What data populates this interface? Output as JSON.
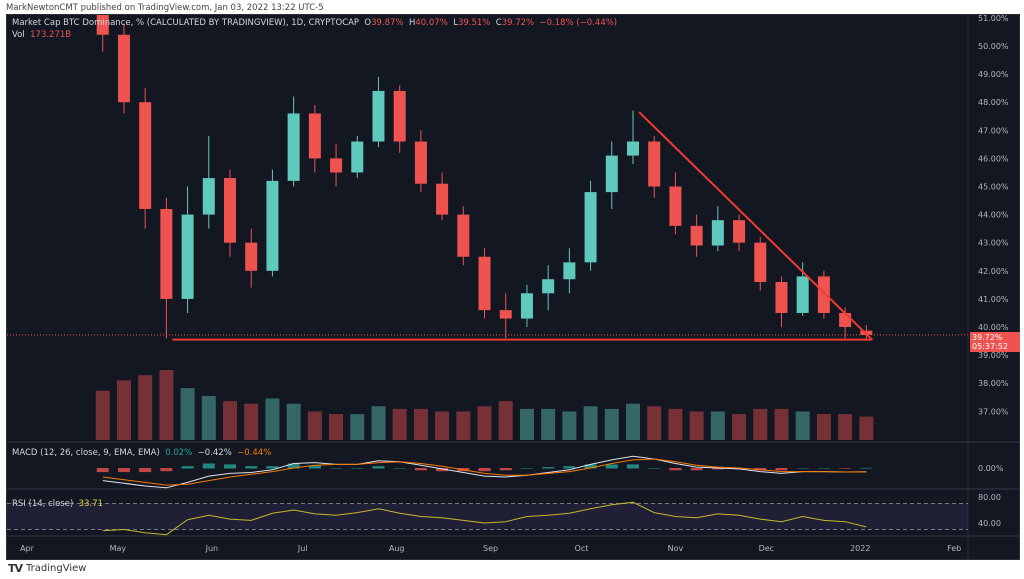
{
  "header": {
    "published": "MarkNewtonCMT published on TradingView.com, Jan 03, 2022 13:22 UTC-5"
  },
  "legend": {
    "symbol": "Market Cap BTC Dominance, % (CALCULATED BY TRADINGVIEW), 1D, CRYPTOCAP",
    "o_label": "O",
    "o": "39.87%",
    "h_label": "H",
    "h": "40.07%",
    "l_label": "L",
    "l": "39.51%",
    "c_label": "C",
    "c": "39.72%",
    "change": "−0.18% (−0.44%)",
    "vol_label": "Vol",
    "vol": "173.271B"
  },
  "macd": {
    "label": "MACD (12, 26, close, 9, EMA, EMA)",
    "hist": "0.02%",
    "macd": "−0.42%",
    "signal": "−0.44%",
    "tick": "0.00%"
  },
  "rsi": {
    "label": "RSI (14, close)",
    "value": "33.71",
    "ticks": [
      "80.00",
      "40.00"
    ]
  },
  "price_tag": {
    "value": "39.72%",
    "countdown": "05:37:52"
  },
  "footer": {
    "logo": "TV",
    "brand": "TradingView"
  },
  "colors": {
    "up": "#5fc9bd",
    "down": "#ef5350",
    "trendline": "#f23b2e",
    "macd": "#e0e3eb",
    "signal": "#f57c00",
    "rsi": "#c9b52a"
  },
  "chart_data": {
    "type": "candlestick",
    "interval": "1W approx (original 1D)",
    "y_ticks": [
      "51.00%",
      "50.00%",
      "49.00%",
      "48.00%",
      "47.00%",
      "46.00%",
      "45.00%",
      "44.00%",
      "43.00%",
      "42.00%",
      "41.00%",
      "40.00%",
      "39.00%",
      "38.00%",
      "37.00%"
    ],
    "ylim": [
      36.5,
      51.2
    ],
    "x_ticks": [
      "Apr",
      "May",
      "Jun",
      "Jul",
      "Aug",
      "Sep",
      "Oct",
      "Nov",
      "Dec",
      "2022",
      "Feb"
    ],
    "x_tick_dates": [
      "2021-04-01",
      "2021-05-01",
      "2021-06-01",
      "2021-07-01",
      "2021-08-01",
      "2021-09-01",
      "2021-10-01",
      "2021-11-01",
      "2021-12-01",
      "2022-01-01",
      "2022-02-01"
    ],
    "candles": [
      {
        "d": "2021-04-26",
        "o": 51.2,
        "h": 51.5,
        "l": 49.8,
        "c": 50.4,
        "v": 190
      },
      {
        "d": "2021-05-03",
        "o": 50.4,
        "h": 50.8,
        "l": 47.6,
        "c": 48.0,
        "v": 230
      },
      {
        "d": "2021-05-10",
        "o": 48.0,
        "h": 48.5,
        "l": 43.5,
        "c": 44.2,
        "v": 250
      },
      {
        "d": "2021-05-17",
        "o": 44.2,
        "h": 44.6,
        "l": 39.6,
        "c": 41.0,
        "v": 270
      },
      {
        "d": "2021-05-24",
        "o": 41.0,
        "h": 45.0,
        "l": 40.5,
        "c": 44.0,
        "v": 200
      },
      {
        "d": "2021-05-31",
        "o": 44.0,
        "h": 46.8,
        "l": 43.5,
        "c": 45.3,
        "v": 170
      },
      {
        "d": "2021-06-07",
        "o": 45.3,
        "h": 45.6,
        "l": 42.5,
        "c": 43.0,
        "v": 150
      },
      {
        "d": "2021-06-14",
        "o": 43.0,
        "h": 43.5,
        "l": 41.4,
        "c": 42.0,
        "v": 140
      },
      {
        "d": "2021-06-21",
        "o": 42.0,
        "h": 45.6,
        "l": 41.8,
        "c": 45.2,
        "v": 160
      },
      {
        "d": "2021-06-28",
        "o": 45.2,
        "h": 48.2,
        "l": 45.0,
        "c": 47.6,
        "v": 140
      },
      {
        "d": "2021-07-05",
        "o": 47.6,
        "h": 47.9,
        "l": 45.5,
        "c": 46.0,
        "v": 110
      },
      {
        "d": "2021-07-12",
        "o": 46.0,
        "h": 46.5,
        "l": 45.0,
        "c": 45.5,
        "v": 100
      },
      {
        "d": "2021-07-19",
        "o": 45.5,
        "h": 46.8,
        "l": 45.3,
        "c": 46.6,
        "v": 100
      },
      {
        "d": "2021-07-26",
        "o": 46.6,
        "h": 48.9,
        "l": 46.4,
        "c": 48.4,
        "v": 130
      },
      {
        "d": "2021-08-02",
        "o": 48.4,
        "h": 48.6,
        "l": 46.2,
        "c": 46.6,
        "v": 120
      },
      {
        "d": "2021-08-09",
        "o": 46.6,
        "h": 47.0,
        "l": 44.8,
        "c": 45.1,
        "v": 120
      },
      {
        "d": "2021-08-16",
        "o": 45.1,
        "h": 45.5,
        "l": 43.8,
        "c": 44.0,
        "v": 110
      },
      {
        "d": "2021-08-23",
        "o": 44.0,
        "h": 44.3,
        "l": 42.2,
        "c": 42.5,
        "v": 110
      },
      {
        "d": "2021-08-30",
        "o": 42.5,
        "h": 42.8,
        "l": 40.3,
        "c": 40.6,
        "v": 130
      },
      {
        "d": "2021-09-06",
        "o": 40.6,
        "h": 41.2,
        "l": 39.6,
        "c": 40.3,
        "v": 150
      },
      {
        "d": "2021-09-13",
        "o": 40.3,
        "h": 41.5,
        "l": 40.0,
        "c": 41.2,
        "v": 120
      },
      {
        "d": "2021-09-20",
        "o": 41.2,
        "h": 42.2,
        "l": 40.6,
        "c": 41.7,
        "v": 120
      },
      {
        "d": "2021-09-27",
        "o": 41.7,
        "h": 42.8,
        "l": 41.2,
        "c": 42.3,
        "v": 110
      },
      {
        "d": "2021-10-04",
        "o": 42.3,
        "h": 45.2,
        "l": 42.0,
        "c": 44.8,
        "v": 130
      },
      {
        "d": "2021-10-11",
        "o": 44.8,
        "h": 46.6,
        "l": 44.2,
        "c": 46.1,
        "v": 120
      },
      {
        "d": "2021-10-18",
        "o": 46.1,
        "h": 47.7,
        "l": 45.8,
        "c": 46.6,
        "v": 140
      },
      {
        "d": "2021-10-25",
        "o": 46.6,
        "h": 46.8,
        "l": 44.6,
        "c": 45.0,
        "v": 130
      },
      {
        "d": "2021-11-01",
        "o": 45.0,
        "h": 45.5,
        "l": 43.3,
        "c": 43.6,
        "v": 120
      },
      {
        "d": "2021-11-08",
        "o": 43.6,
        "h": 44.0,
        "l": 42.5,
        "c": 42.9,
        "v": 110
      },
      {
        "d": "2021-11-15",
        "o": 42.9,
        "h": 44.3,
        "l": 42.7,
        "c": 43.8,
        "v": 110
      },
      {
        "d": "2021-11-22",
        "o": 43.8,
        "h": 44.0,
        "l": 42.7,
        "c": 43.0,
        "v": 100
      },
      {
        "d": "2021-11-29",
        "o": 43.0,
        "h": 43.2,
        "l": 41.3,
        "c": 41.6,
        "v": 120
      },
      {
        "d": "2021-12-06",
        "o": 41.6,
        "h": 41.8,
        "l": 40.0,
        "c": 40.5,
        "v": 120
      },
      {
        "d": "2021-12-13",
        "o": 40.5,
        "h": 42.3,
        "l": 40.4,
        "c": 41.8,
        "v": 110
      },
      {
        "d": "2021-12-20",
        "o": 41.8,
        "h": 42.0,
        "l": 40.3,
        "c": 40.5,
        "v": 100
      },
      {
        "d": "2021-12-27",
        "o": 40.5,
        "h": 40.7,
        "l": 39.6,
        "c": 40.0,
        "v": 100
      },
      {
        "d": "2022-01-03",
        "o": 39.87,
        "h": 40.07,
        "l": 39.51,
        "c": 39.72,
        "v": 90
      }
    ],
    "drawings": [
      {
        "type": "trendline",
        "from": {
          "d": "2021-10-20",
          "p": 47.65
        },
        "to": {
          "d": "2022-01-05",
          "p": 39.54
        }
      },
      {
        "type": "support",
        "from": {
          "d": "2021-05-19",
          "p": 39.55
        },
        "to": {
          "d": "2022-01-05",
          "p": 39.55
        }
      }
    ],
    "rsi_series": [
      28,
      30,
      25,
      22,
      45,
      52,
      46,
      44,
      55,
      60,
      54,
      52,
      56,
      62,
      55,
      50,
      48,
      44,
      40,
      42,
      50,
      52,
      55,
      62,
      68,
      72,
      56,
      50,
      48,
      54,
      52,
      46,
      42,
      50,
      44,
      42,
      34
    ],
    "macd_series": [
      -1.4,
      -1.7,
      -2.0,
      -2.2,
      -1.6,
      -0.9,
      -0.6,
      -0.5,
      -0.2,
      0.5,
      0.6,
      0.4,
      0.4,
      0.8,
      0.7,
      0.3,
      -0.1,
      -0.5,
      -0.9,
      -1.0,
      -0.8,
      -0.5,
      -0.2,
      0.4,
      0.9,
      1.3,
      1.0,
      0.5,
      0.1,
      0.0,
      -0.1,
      -0.4,
      -0.6,
      -0.4,
      -0.4,
      -0.45,
      -0.42
    ],
    "signal_series": [
      -1.0,
      -1.3,
      -1.6,
      -1.9,
      -1.8,
      -1.4,
      -1.0,
      -0.7,
      -0.4,
      0.0,
      0.3,
      0.4,
      0.4,
      0.6,
      0.7,
      0.5,
      0.2,
      -0.2,
      -0.6,
      -0.8,
      -0.8,
      -0.6,
      -0.4,
      0.0,
      0.5,
      0.9,
      1.0,
      0.7,
      0.3,
      0.1,
      0.0,
      -0.2,
      -0.4,
      -0.4,
      -0.4,
      -0.44,
      -0.44
    ]
  }
}
